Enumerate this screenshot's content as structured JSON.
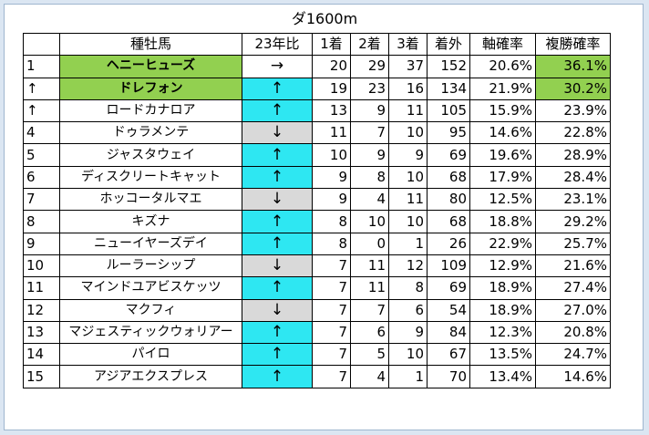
{
  "title": "ダ1600m",
  "headers": [
    "",
    "種牡馬",
    "23年比",
    "1着",
    "2着",
    "3着",
    "着外",
    "軸確率",
    "複勝確率"
  ],
  "colors": {
    "up_cell": "#2ee7f2",
    "down_cell": "#d9d9d9",
    "highlight": "#92d050"
  },
  "rows": [
    {
      "rank": "1",
      "name": "ヘニーヒューズ",
      "bold": true,
      "name_hl": true,
      "trend": "→",
      "trend_type": "flat",
      "w1": "20",
      "w2": "29",
      "w3": "37",
      "out": "152",
      "axis": "20.6%",
      "place": "36.1%",
      "place_hl": true
    },
    {
      "rank": "↑",
      "name": "ドレフォン",
      "bold": true,
      "name_hl": true,
      "trend": "↑",
      "trend_type": "up",
      "w1": "19",
      "w2": "23",
      "w3": "16",
      "out": "134",
      "axis": "21.9%",
      "place": "30.2%",
      "place_hl": true
    },
    {
      "rank": "↑",
      "name": "ロードカナロア",
      "bold": false,
      "name_hl": false,
      "trend": "↑",
      "trend_type": "up",
      "w1": "13",
      "w2": "9",
      "w3": "11",
      "out": "105",
      "axis": "15.9%",
      "place": "23.9%",
      "place_hl": false
    },
    {
      "rank": "4",
      "name": "ドゥラメンテ",
      "bold": false,
      "name_hl": false,
      "trend": "↓",
      "trend_type": "down",
      "w1": "11",
      "w2": "7",
      "w3": "10",
      "out": "95",
      "axis": "14.6%",
      "place": "22.8%",
      "place_hl": false
    },
    {
      "rank": "5",
      "name": "ジャスタウェイ",
      "bold": false,
      "name_hl": false,
      "trend": "↑",
      "trend_type": "up",
      "w1": "10",
      "w2": "9",
      "w3": "9",
      "out": "69",
      "axis": "19.6%",
      "place": "28.9%",
      "place_hl": false
    },
    {
      "rank": "6",
      "name": "ディスクリートキャット",
      "bold": false,
      "name_hl": false,
      "trend": "↑",
      "trend_type": "up",
      "w1": "9",
      "w2": "8",
      "w3": "10",
      "out": "68",
      "axis": "17.9%",
      "place": "28.4%",
      "place_hl": false
    },
    {
      "rank": "7",
      "name": "ホッコータルマエ",
      "bold": false,
      "name_hl": false,
      "trend": "↓",
      "trend_type": "down",
      "w1": "9",
      "w2": "4",
      "w3": "11",
      "out": "80",
      "axis": "12.5%",
      "place": "23.1%",
      "place_hl": false
    },
    {
      "rank": "8",
      "name": "キズナ",
      "bold": false,
      "name_hl": false,
      "trend": "↑",
      "trend_type": "up",
      "w1": "8",
      "w2": "10",
      "w3": "10",
      "out": "68",
      "axis": "18.8%",
      "place": "29.2%",
      "place_hl": false
    },
    {
      "rank": "9",
      "name": "ニューイヤーズデイ",
      "bold": false,
      "name_hl": false,
      "trend": "↑",
      "trend_type": "up",
      "w1": "8",
      "w2": "0",
      "w3": "1",
      "out": "26",
      "axis": "22.9%",
      "place": "25.7%",
      "place_hl": false
    },
    {
      "rank": "10",
      "name": "ルーラーシップ",
      "bold": false,
      "name_hl": false,
      "trend": "↓",
      "trend_type": "down",
      "w1": "7",
      "w2": "11",
      "w3": "12",
      "out": "109",
      "axis": "12.9%",
      "place": "21.6%",
      "place_hl": false
    },
    {
      "rank": "11",
      "name": "マインドユアビスケッツ",
      "bold": false,
      "name_hl": false,
      "trend": "↑",
      "trend_type": "up",
      "w1": "7",
      "w2": "11",
      "w3": "8",
      "out": "69",
      "axis": "18.9%",
      "place": "27.4%",
      "place_hl": false
    },
    {
      "rank": "12",
      "name": "マクフィ",
      "bold": false,
      "name_hl": false,
      "trend": "↓",
      "trend_type": "down",
      "w1": "7",
      "w2": "7",
      "w3": "6",
      "out": "54",
      "axis": "18.9%",
      "place": "27.0%",
      "place_hl": false
    },
    {
      "rank": "13",
      "name": "マジェスティックウォリアー",
      "bold": false,
      "name_hl": false,
      "trend": "↑",
      "trend_type": "up",
      "w1": "7",
      "w2": "6",
      "w3": "9",
      "out": "84",
      "axis": "12.3%",
      "place": "20.8%",
      "place_hl": false
    },
    {
      "rank": "14",
      "name": "パイロ",
      "bold": false,
      "name_hl": false,
      "trend": "↑",
      "trend_type": "up",
      "w1": "7",
      "w2": "5",
      "w3": "10",
      "out": "67",
      "axis": "13.5%",
      "place": "24.7%",
      "place_hl": false
    },
    {
      "rank": "15",
      "name": "アジアエクスプレス",
      "bold": false,
      "name_hl": false,
      "trend": "↑",
      "trend_type": "up",
      "w1": "7",
      "w2": "4",
      "w3": "1",
      "out": "70",
      "axis": "13.4%",
      "place": "14.6%",
      "place_hl": false
    }
  ]
}
